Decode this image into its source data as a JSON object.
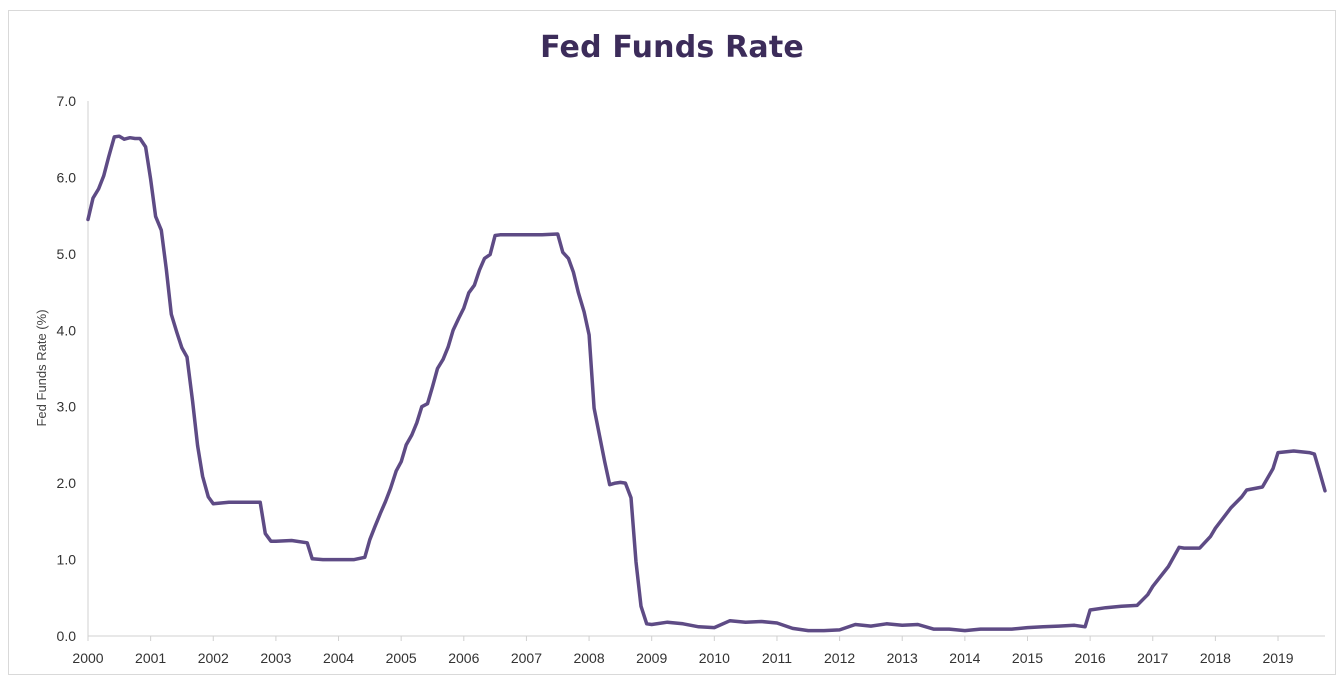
{
  "chart_data": {
    "type": "line",
    "title": "Fed Funds Rate",
    "xlabel": "",
    "ylabel": "Fed Funds Rate (%)",
    "ylim": [
      0,
      7
    ],
    "yticks": [
      "0.0",
      "1.0",
      "2.0",
      "3.0",
      "4.0",
      "5.0",
      "6.0",
      "7.0"
    ],
    "xlim": [
      2000.0,
      2019.75
    ],
    "xticks": [
      "2000",
      "2001",
      "2002",
      "2003",
      "2004",
      "2005",
      "2006",
      "2007",
      "2008",
      "2009",
      "2010",
      "2011",
      "2012",
      "2013",
      "2014",
      "2015",
      "2016",
      "2017",
      "2018",
      "2019"
    ],
    "grid": false,
    "legend": "none",
    "line_color": "#5e4b85",
    "series": [
      {
        "x": [
          2000.0,
          2000.08,
          2000.17,
          2000.25,
          2000.33,
          2000.42,
          2000.5,
          2000.58,
          2000.67,
          2000.75,
          2000.83,
          2000.92,
          2001.0,
          2001.08,
          2001.17,
          2001.25,
          2001.33,
          2001.42,
          2001.5,
          2001.58,
          2001.67,
          2001.75,
          2001.83,
          2001.92,
          2002.0,
          2002.25,
          2002.5,
          2002.75,
          2002.83,
          2002.92,
          2003.0,
          2003.25,
          2003.5,
          2003.58,
          2003.75,
          2004.0,
          2004.25,
          2004.42,
          2004.5,
          2004.58,
          2004.67,
          2004.75,
          2004.83,
          2004.92,
          2005.0,
          2005.08,
          2005.17,
          2005.25,
          2005.33,
          2005.42,
          2005.5,
          2005.58,
          2005.67,
          2005.75,
          2005.83,
          2005.92,
          2006.0,
          2006.08,
          2006.17,
          2006.25,
          2006.33,
          2006.42,
          2006.5,
          2006.58,
          2007.0,
          2007.25,
          2007.5,
          2007.58,
          2007.67,
          2007.75,
          2007.83,
          2007.92,
          2008.0,
          2008.08,
          2008.17,
          2008.25,
          2008.33,
          2008.42,
          2008.5,
          2008.58,
          2008.67,
          2008.75,
          2008.83,
          2008.92,
          2009.0,
          2009.25,
          2009.5,
          2009.75,
          2010.0,
          2010.25,
          2010.5,
          2010.75,
          2011.0,
          2011.25,
          2011.5,
          2011.75,
          2012.0,
          2012.25,
          2012.5,
          2012.75,
          2013.0,
          2013.25,
          2013.5,
          2013.75,
          2014.0,
          2014.25,
          2014.5,
          2014.75,
          2015.0,
          2015.25,
          2015.5,
          2015.75,
          2015.92,
          2016.0,
          2016.25,
          2016.5,
          2016.75,
          2016.92,
          2017.0,
          2017.25,
          2017.42,
          2017.5,
          2017.75,
          2017.92,
          2018.0,
          2018.25,
          2018.42,
          2018.5,
          2018.75,
          2018.92,
          2019.0,
          2019.25,
          2019.5,
          2019.58,
          2019.67,
          2019.75
        ],
        "y": [
          5.45,
          5.73,
          5.85,
          6.02,
          6.27,
          6.53,
          6.54,
          6.5,
          6.52,
          6.51,
          6.51,
          6.4,
          5.98,
          5.49,
          5.31,
          4.8,
          4.21,
          3.97,
          3.77,
          3.65,
          3.07,
          2.49,
          2.09,
          1.82,
          1.73,
          1.75,
          1.75,
          1.75,
          1.34,
          1.24,
          1.24,
          1.25,
          1.22,
          1.01,
          1.0,
          1.0,
          1.0,
          1.03,
          1.26,
          1.43,
          1.61,
          1.76,
          1.93,
          2.16,
          2.28,
          2.5,
          2.63,
          2.79,
          3.0,
          3.04,
          3.26,
          3.5,
          3.62,
          3.78,
          4.0,
          4.16,
          4.29,
          4.49,
          4.59,
          4.79,
          4.94,
          4.99,
          5.24,
          5.25,
          5.25,
          5.25,
          5.26,
          5.02,
          4.94,
          4.76,
          4.49,
          4.24,
          3.94,
          2.98,
          2.61,
          2.28,
          1.98,
          2.0,
          2.01,
          2.0,
          1.81,
          0.97,
          0.39,
          0.16,
          0.15,
          0.18,
          0.16,
          0.12,
          0.11,
          0.2,
          0.18,
          0.19,
          0.17,
          0.1,
          0.07,
          0.07,
          0.08,
          0.15,
          0.13,
          0.16,
          0.14,
          0.15,
          0.09,
          0.09,
          0.07,
          0.09,
          0.09,
          0.09,
          0.11,
          0.12,
          0.13,
          0.14,
          0.12,
          0.34,
          0.37,
          0.39,
          0.4,
          0.54,
          0.65,
          0.91,
          1.16,
          1.15,
          1.15,
          1.3,
          1.41,
          1.68,
          1.82,
          1.91,
          1.95,
          2.19,
          2.4,
          2.42,
          2.4,
          2.38,
          2.13,
          1.9
        ]
      }
    ]
  }
}
